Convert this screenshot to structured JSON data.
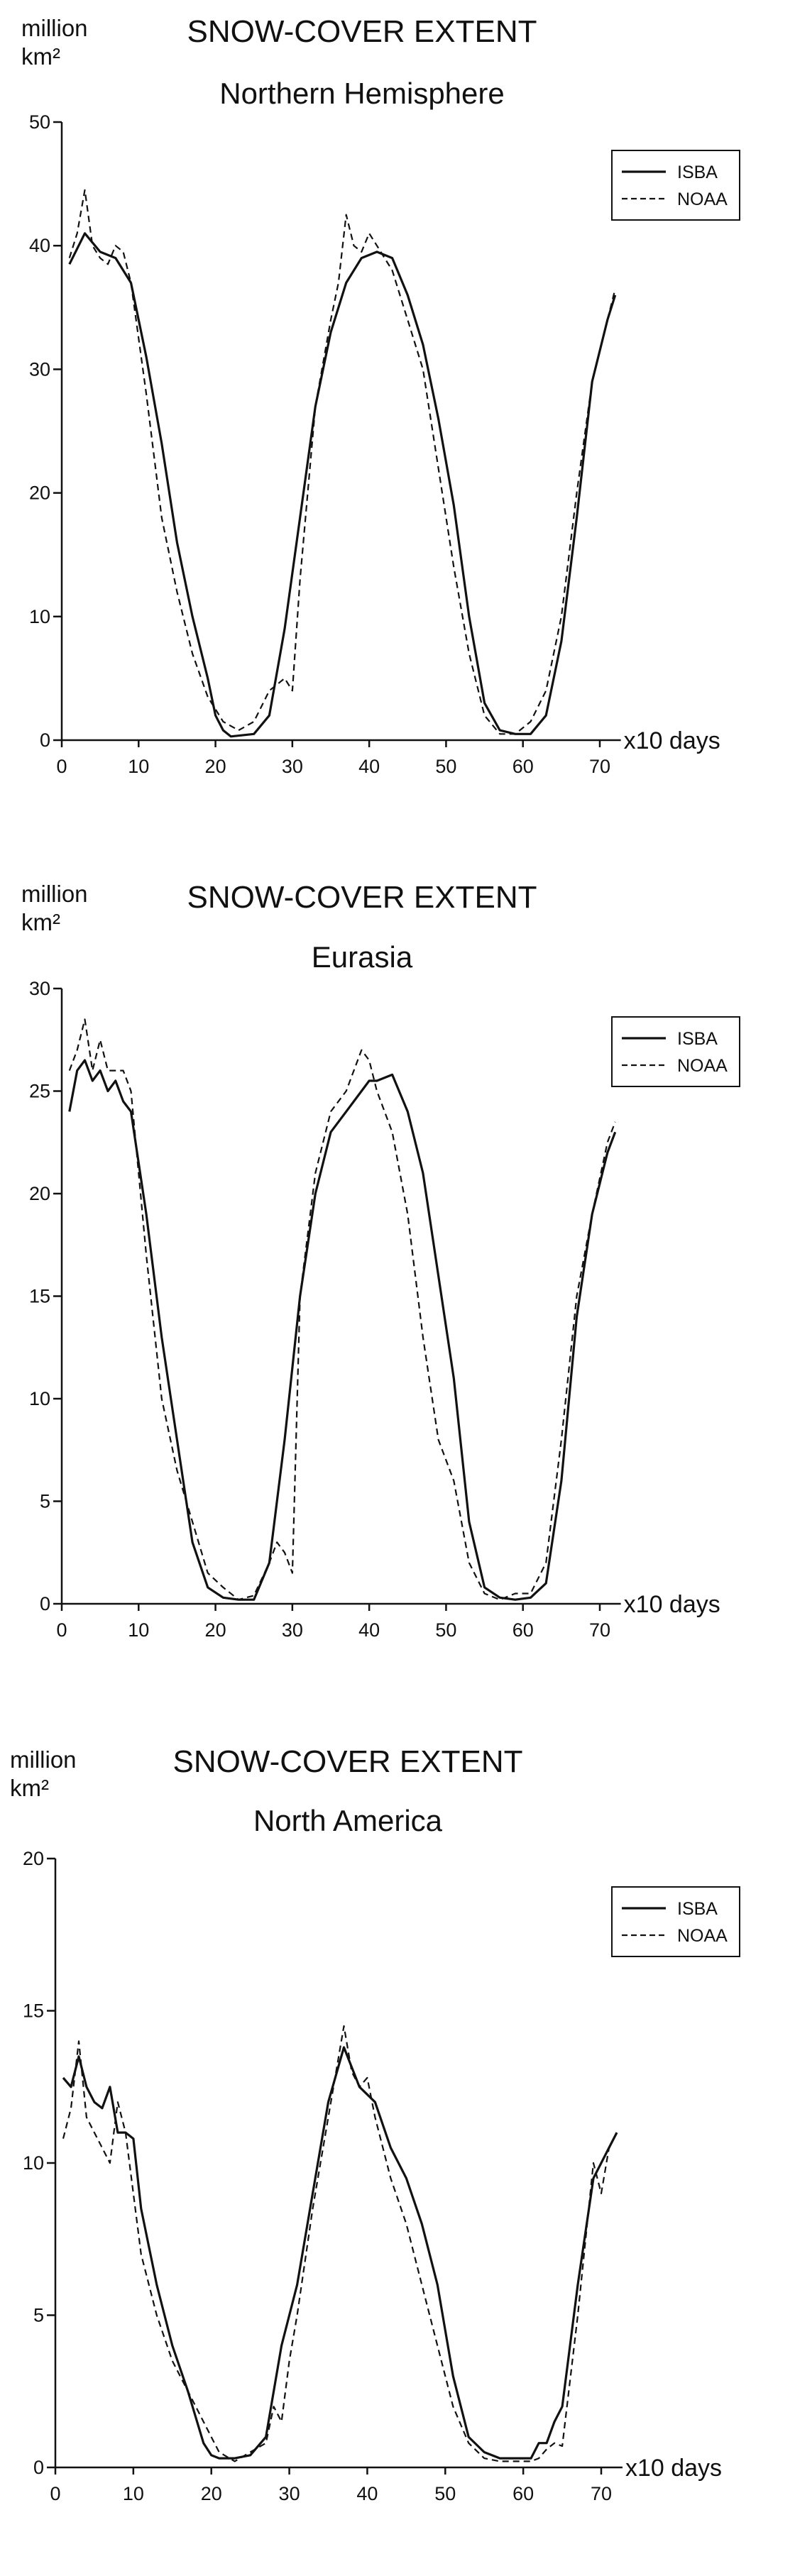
{
  "chart_data": [
    {
      "type": "line",
      "title": "SNOW-COVER EXTENT",
      "subtitle": "Northern Hemisphere",
      "ylabel": "million km²",
      "xlabel": "x10 days",
      "xlim": [
        0,
        72
      ],
      "ylim": [
        0,
        50
      ],
      "xticks": [
        0,
        10,
        20,
        30,
        40,
        50,
        60,
        70
      ],
      "yticks": [
        0,
        10,
        20,
        30,
        40,
        50
      ],
      "legend": "top-right",
      "series": [
        {
          "name": "ISBA",
          "style": "solid",
          "x": [
            1,
            3,
            5,
            7,
            9,
            11,
            13,
            15,
            17,
            19,
            20,
            21,
            22,
            25,
            27,
            29,
            31,
            33,
            35,
            37,
            39,
            41,
            43,
            45,
            47,
            49,
            51,
            53,
            55,
            57,
            59,
            61,
            63,
            65,
            67,
            69,
            71,
            72
          ],
          "y": [
            38.5,
            41,
            39.5,
            39,
            37,
            31,
            24,
            16,
            10,
            5,
            2,
            0.8,
            0.3,
            0.5,
            2,
            9,
            18,
            27,
            33,
            37,
            39,
            39.5,
            39,
            36,
            32,
            26,
            19,
            10,
            3,
            0.8,
            0.5,
            0.5,
            2,
            8,
            18,
            29,
            34,
            36
          ]
        },
        {
          "name": "NOAA",
          "style": "dashed",
          "x": [
            1,
            2,
            3,
            4,
            5,
            6,
            7,
            8,
            9,
            11,
            13,
            15,
            17,
            19,
            21,
            23,
            25,
            27,
            29,
            30,
            31,
            33,
            35,
            36,
            37,
            38,
            39,
            40,
            41,
            43,
            45,
            47,
            49,
            51,
            53,
            55,
            57,
            59,
            61,
            63,
            65,
            67,
            69,
            71,
            72
          ],
          "y": [
            39,
            41,
            44.5,
            40,
            39,
            38.5,
            40,
            39.5,
            37,
            28,
            18,
            12,
            7,
            3.5,
            1.5,
            0.8,
            1.5,
            4,
            5,
            4,
            13,
            27,
            34,
            37,
            42.5,
            40,
            39.5,
            41,
            40,
            38,
            34,
            30,
            22,
            14,
            7,
            2,
            0.5,
            0.5,
            1.5,
            4,
            10,
            20,
            29,
            34,
            36.5
          ]
        }
      ]
    },
    {
      "type": "line",
      "title": "SNOW-COVER EXTENT",
      "subtitle": "Eurasia",
      "ylabel": "million km²",
      "xlabel": "x10 days",
      "xlim": [
        0,
        72
      ],
      "ylim": [
        0,
        30
      ],
      "xticks": [
        0,
        10,
        20,
        30,
        40,
        50,
        60,
        70
      ],
      "yticks": [
        0,
        5,
        10,
        15,
        20,
        25,
        30
      ],
      "legend": "top-right",
      "series": [
        {
          "name": "ISBA",
          "style": "solid",
          "x": [
            1,
            2,
            3,
            4,
            5,
            6,
            7,
            8,
            9,
            11,
            13,
            15,
            17,
            19,
            21,
            23,
            25,
            27,
            29,
            31,
            33,
            35,
            37,
            39,
            40,
            41,
            43,
            45,
            47,
            49,
            51,
            53,
            55,
            57,
            59,
            61,
            63,
            65,
            67,
            69,
            71,
            72
          ],
          "y": [
            24,
            26,
            26.5,
            25.5,
            26,
            25,
            25.5,
            24.5,
            24,
            19,
            13,
            8,
            3,
            0.8,
            0.3,
            0.2,
            0.2,
            2,
            8,
            15,
            20,
            23,
            24,
            25,
            25.5,
            25.5,
            25.8,
            24,
            21,
            16,
            11,
            4,
            0.8,
            0.3,
            0.2,
            0.3,
            1,
            6,
            14,
            19,
            22,
            23
          ]
        },
        {
          "name": "NOAA",
          "style": "dashed",
          "x": [
            1,
            2,
            3,
            4,
            5,
            6,
            7,
            8,
            9,
            11,
            13,
            15,
            17,
            19,
            21,
            23,
            25,
            27,
            28,
            29,
            30,
            31,
            33,
            35,
            37,
            39,
            40,
            41,
            43,
            45,
            47,
            49,
            51,
            53,
            55,
            57,
            59,
            61,
            63,
            65,
            67,
            69,
            71,
            72
          ],
          "y": [
            26,
            27,
            28.5,
            26,
            27.5,
            26,
            26,
            26,
            25,
            17,
            10,
            6.5,
            4,
            1.5,
            0.8,
            0.2,
            0.4,
            2,
            3,
            2.5,
            1.5,
            15,
            21,
            24,
            25,
            27,
            26.5,
            25,
            23,
            19,
            13,
            8,
            6,
            2,
            0.5,
            0.2,
            0.5,
            0.5,
            2,
            8,
            15,
            19,
            22.5,
            23.5
          ]
        }
      ]
    },
    {
      "type": "line",
      "title": "SNOW-COVER EXTENT",
      "subtitle": "North America",
      "ylabel": "million km²",
      "xlabel": "x10 days",
      "xlim": [
        0,
        72
      ],
      "ylim": [
        0,
        20
      ],
      "xticks": [
        0,
        10,
        20,
        30,
        40,
        50,
        60,
        70
      ],
      "yticks": [
        0,
        5,
        10,
        15,
        20
      ],
      "legend": "top-right",
      "series": [
        {
          "name": "ISBA",
          "style": "solid",
          "x": [
            1,
            2,
            3,
            4,
            5,
            6,
            7,
            8,
            9,
            10,
            11,
            13,
            15,
            17,
            19,
            20,
            21,
            23,
            25,
            27,
            29,
            31,
            33,
            35,
            37,
            39,
            41,
            43,
            45,
            47,
            49,
            51,
            53,
            55,
            57,
            59,
            61,
            62,
            63,
            64,
            65,
            67,
            69,
            71,
            72
          ],
          "y": [
            12.8,
            12.5,
            13.5,
            12.5,
            12,
            11.8,
            12.5,
            11,
            11,
            10.8,
            8.5,
            6,
            4,
            2.5,
            0.8,
            0.4,
            0.3,
            0.3,
            0.4,
            1,
            4,
            6,
            9,
            12,
            13.8,
            12.5,
            12,
            10.5,
            9.5,
            8,
            6,
            3,
            1,
            0.5,
            0.3,
            0.3,
            0.3,
            0.8,
            0.8,
            1.5,
            2,
            6,
            9.5,
            10.5,
            11
          ]
        },
        {
          "name": "NOAA",
          "style": "dashed",
          "x": [
            1,
            2,
            3,
            4,
            5,
            6,
            7,
            8,
            9,
            11,
            13,
            15,
            17,
            19,
            21,
            23,
            25,
            27,
            28,
            29,
            30,
            31,
            33,
            35,
            37,
            38,
            39,
            40,
            41,
            43,
            45,
            47,
            49,
            51,
            53,
            55,
            57,
            59,
            61,
            62,
            63,
            64,
            65,
            67,
            69,
            70,
            71
          ],
          "y": [
            10.8,
            11.8,
            14,
            11.5,
            11,
            10.5,
            10,
            12,
            11,
            7,
            5,
            3.5,
            2.5,
            1.5,
            0.5,
            0.2,
            0.5,
            0.8,
            2,
            1.5,
            3.5,
            5,
            8.5,
            11.5,
            14.5,
            13,
            12.5,
            12.8,
            11.5,
            9.5,
            8,
            6,
            4,
            2,
            0.8,
            0.3,
            0.2,
            0.2,
            0.2,
            0.3,
            0.6,
            0.8,
            0.7,
            5,
            10,
            9,
            10.5
          ]
        }
      ]
    }
  ]
}
